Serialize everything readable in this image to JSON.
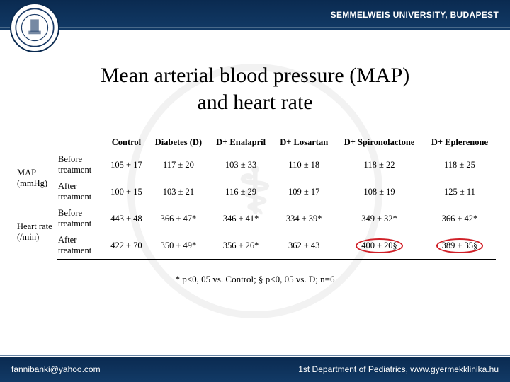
{
  "header": {
    "university": "SEMMELWEIS UNIVERSITY, BUDAPEST",
    "seal_text": "SEMMELWEIS"
  },
  "title_line1": "Mean arterial blood pressure (MAP)",
  "title_line2": "and heart rate",
  "table": {
    "columns": [
      "Control",
      "Diabetes (D)",
      "D+ Enalapril",
      "D+ Losartan",
      "D+ Spironolactone",
      "D+ Eplerenone"
    ],
    "groups": [
      {
        "label": "MAP (mmHg)",
        "rows": [
          {
            "label": "Before treatment",
            "cells": [
              "105 + 17",
              "117 ± 20",
              "103 ± 33",
              "110 ± 18",
              "118 ± 22",
              "118 ± 25"
            ],
            "circled": [
              false,
              false,
              false,
              false,
              false,
              false
            ]
          },
          {
            "label": "After treatment",
            "cells": [
              "100 + 15",
              "103 ± 21",
              "116 ± 29",
              "109 ± 17",
              "108 ± 19",
              "125 ± 11"
            ],
            "circled": [
              false,
              false,
              false,
              false,
              false,
              false
            ]
          }
        ]
      },
      {
        "label": "Heart rate (/min)",
        "rows": [
          {
            "label": "Before treatment",
            "cells": [
              "443 ± 48",
              "366 ± 47*",
              "346 ± 41*",
              "334 ± 39*",
              "349 ± 32*",
              "366 ± 42*"
            ],
            "circled": [
              false,
              false,
              false,
              false,
              false,
              false
            ]
          },
          {
            "label": "After treatment",
            "cells": [
              "422 ± 70",
              "350 ± 49*",
              "356 ± 26*",
              "362 ± 43",
              "400 ± 20§",
              "389 ± 35§"
            ],
            "circled": [
              false,
              false,
              false,
              false,
              true,
              true
            ]
          }
        ]
      }
    ]
  },
  "footnote": "* p<0, 05 vs. Control; § p<0, 05 vs. D; n=6",
  "footer": {
    "email": "fannibanki@yahoo.com",
    "dept": "1st Department of Pediatrics, www.gyermekklinika.hu"
  },
  "style": {
    "header_bg": "#0a2a50",
    "circle_color": "#d02028",
    "title_fontsize": 30,
    "table_fontsize": 12.5,
    "background": "#ffffff"
  }
}
